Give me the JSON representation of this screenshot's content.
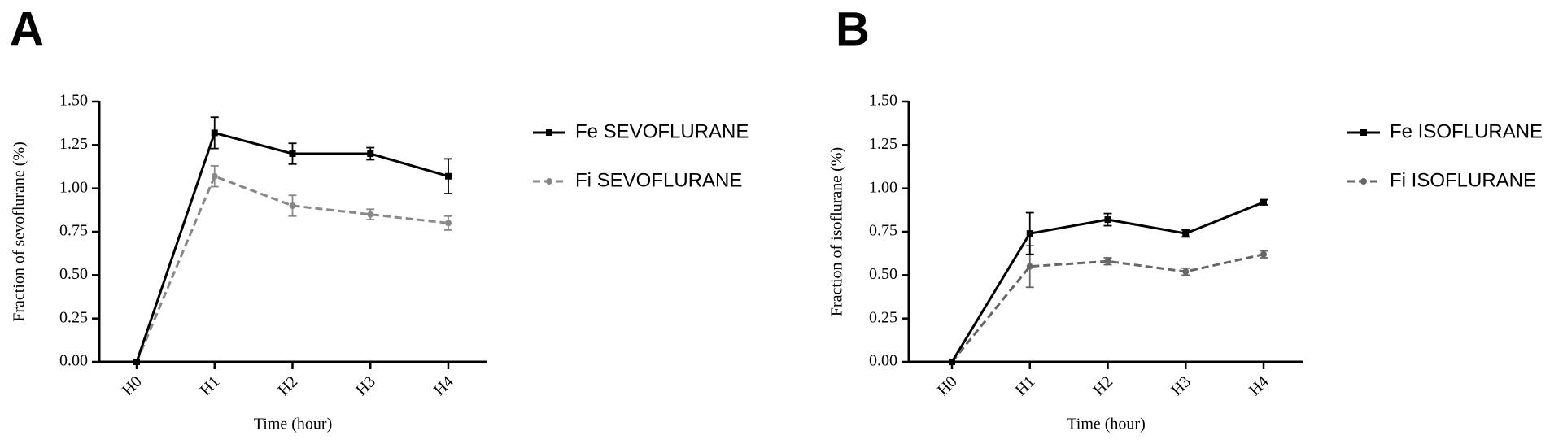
{
  "chart_data": [
    {
      "type": "line",
      "panel_label": "A",
      "x_label": "Time (hour)",
      "y_label": "Fraction of sevoflurane (%)",
      "categories": [
        "H0",
        "H1",
        "H2",
        "H3",
        "H4"
      ],
      "ylim": [
        0,
        1.5
      ],
      "yticks": [
        {
          "value": 0,
          "label": "0.00"
        },
        {
          "value": 0.25,
          "label": "0.25"
        },
        {
          "value": 0.5,
          "label": "0.50"
        },
        {
          "value": 0.75,
          "label": "0.75"
        },
        {
          "value": 1.0,
          "label": "1.00"
        },
        {
          "value": 1.25,
          "label": "1.25"
        },
        {
          "value": 1.5,
          "label": "1.50"
        }
      ],
      "series": [
        {
          "name": "Fe SEVOFLURANE",
          "color": "#000000",
          "line_style": "solid",
          "marker": "square",
          "values": [
            0,
            1.32,
            1.2,
            1.2,
            1.07
          ],
          "errors": [
            0,
            0.09,
            0.06,
            0.035,
            0.1
          ]
        },
        {
          "name": "Fi SEVOFLURANE",
          "color": "#888888",
          "line_style": "dashed",
          "marker": "circle",
          "values": [
            0,
            1.07,
            0.9,
            0.85,
            0.8
          ],
          "errors": [
            0,
            0.06,
            0.06,
            0.03,
            0.04
          ]
        }
      ]
    },
    {
      "type": "line",
      "panel_label": "B",
      "x_label": "Time (hour)",
      "y_label": "Fraction of isoflurane (%)",
      "categories": [
        "H0",
        "H1",
        "H2",
        "H3",
        "H4"
      ],
      "ylim": [
        0,
        1.5
      ],
      "yticks": [
        {
          "value": 0,
          "label": "0.00"
        },
        {
          "value": 0.25,
          "label": "0.25"
        },
        {
          "value": 0.5,
          "label": "0.50"
        },
        {
          "value": 0.75,
          "label": "0.75"
        },
        {
          "value": 1.0,
          "label": "1.00"
        },
        {
          "value": 1.25,
          "label": "1.25"
        },
        {
          "value": 1.5,
          "label": "1.50"
        }
      ],
      "series": [
        {
          "name": "Fe ISOFLURANE",
          "color": "#000000",
          "line_style": "solid",
          "marker": "square",
          "values": [
            0,
            0.74,
            0.82,
            0.74,
            0.92
          ],
          "errors": [
            0,
            0.12,
            0.035,
            0.02,
            0.015
          ]
        },
        {
          "name": "Fi ISOFLURANE",
          "color": "#666666",
          "line_style": "dashed",
          "marker": "circle",
          "values": [
            0,
            0.55,
            0.58,
            0.52,
            0.62
          ],
          "errors": [
            0,
            0.12,
            0.02,
            0.02,
            0.02
          ]
        }
      ]
    }
  ]
}
